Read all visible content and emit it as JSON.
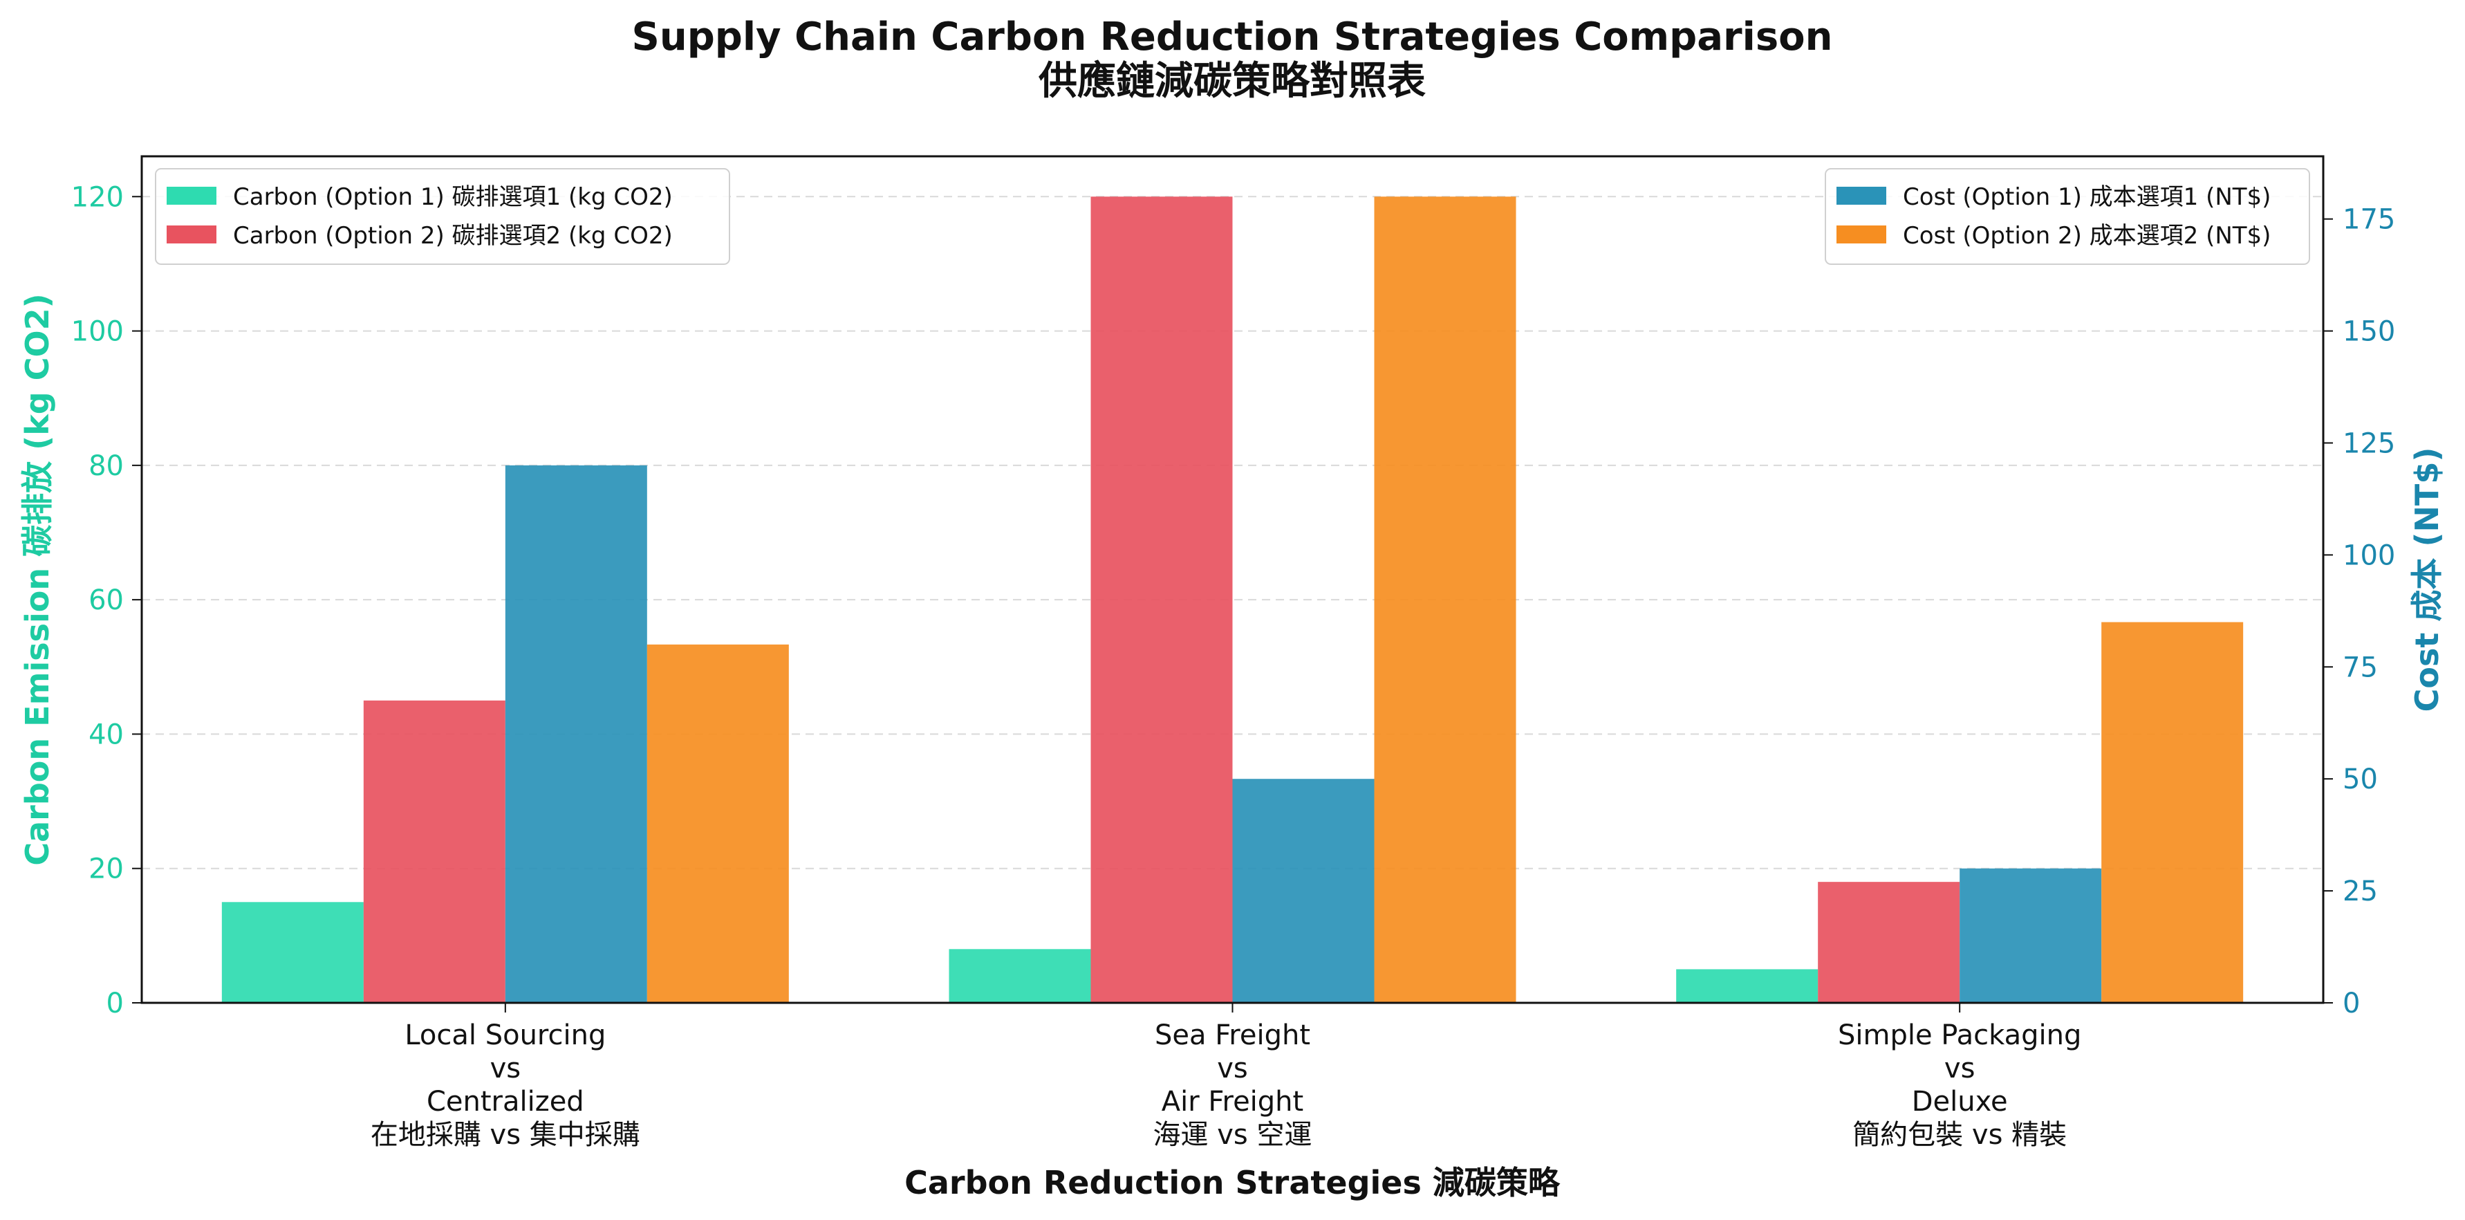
{
  "chart_data": {
    "type": "bar",
    "title": "Supply Chain Carbon Reduction Strategies Comparison",
    "subtitle": "供應鏈減碳策略對照表",
    "xlabel": "Carbon Reduction Strategies 減碳策略",
    "ylabel_left": "Carbon Emission 碳排放 (kg CO2)",
    "ylabel_right": "Cost 成本 (NT$)",
    "ylim_left": [
      0,
      126
    ],
    "ylim_right": [
      0,
      189
    ],
    "yticks_left": [
      0,
      20,
      40,
      60,
      80,
      100,
      120
    ],
    "yticks_right": [
      0,
      25,
      50,
      75,
      100,
      125,
      150,
      175
    ],
    "grid": "horizontal dashed",
    "categories": [
      [
        "Local Sourcing",
        "vs",
        "Centralized",
        "在地採購 vs 集中採購"
      ],
      [
        "Sea Freight",
        "vs",
        "Air Freight",
        "海運 vs 空運"
      ],
      [
        "Simple Packaging",
        "vs",
        "Deluxe",
        "簡約包裝 vs 精裝"
      ]
    ],
    "series": [
      {
        "name": "Carbon (Option 1) 碳排選項1 (kg CO2)",
        "axis": "left",
        "color": "#2edbb0",
        "values": [
          15,
          8,
          5
        ]
      },
      {
        "name": "Carbon (Option 2) 碳排選項2 (kg CO2)",
        "axis": "left",
        "color": "#e8535f",
        "values": [
          45,
          120,
          18
        ]
      },
      {
        "name": "Cost (Option 1) 成本選項1 (NT$)",
        "axis": "right",
        "color": "#2a93b8",
        "values": [
          120,
          50,
          30
        ]
      },
      {
        "name": "Cost (Option 2) 成本選項2 (NT$)",
        "axis": "right",
        "color": "#f68e21",
        "values": [
          80,
          180,
          85
        ]
      }
    ],
    "legend_left_position": "upper-left",
    "legend_right_position": "upper-right",
    "left_axis_color": "#1ecba2",
    "right_axis_color": "#1a86ac"
  }
}
